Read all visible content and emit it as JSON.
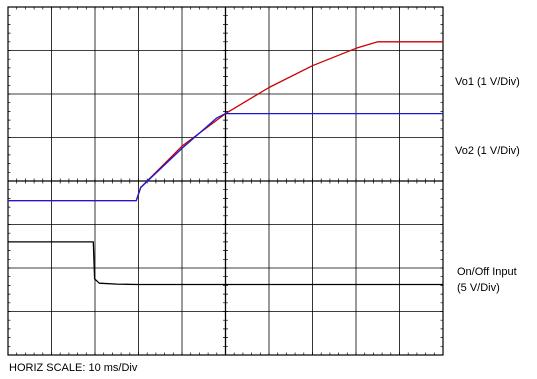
{
  "chart_data": {
    "type": "line",
    "title": "",
    "xlabel": "",
    "ylabel": "",
    "grid": true,
    "divisions": {
      "x": 10,
      "y": 8
    },
    "xlim": [
      0,
      100
    ],
    "ylim": [
      0,
      8
    ],
    "x_unit": "ms",
    "horiz_scale_label": "HORIZ SCALE: 10 ms/Div",
    "series": [
      {
        "name": "Vo1 (1 V/Div)",
        "color": "#cc0000",
        "x": [
          0,
          29.5,
          30.5,
          40,
          50,
          60,
          70,
          80,
          85,
          100
        ],
        "y": [
          3.55,
          3.55,
          3.85,
          4.8,
          5.55,
          6.15,
          6.65,
          7.05,
          7.2,
          7.2
        ]
      },
      {
        "name": "Vo2 (1 V/Div)",
        "color": "#1a1ad6",
        "x": [
          0,
          29.5,
          30.5,
          40,
          48,
          50,
          100
        ],
        "y": [
          3.55,
          3.55,
          3.85,
          4.75,
          5.45,
          5.55,
          5.55
        ]
      },
      {
        "name": "On/Off Input",
        "sublabel": "(5 V/Div)",
        "color": "#000000",
        "x": [
          0,
          19.6,
          19.9,
          21,
          25,
          30,
          100
        ],
        "y": [
          2.6,
          2.6,
          1.75,
          1.65,
          1.63,
          1.62,
          1.62
        ]
      }
    ]
  }
}
